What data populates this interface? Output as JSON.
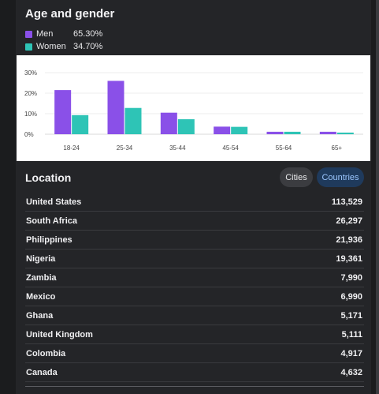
{
  "age_gender": {
    "title": "Age and gender",
    "legend": [
      {
        "name": "Men",
        "percent": "65.30%",
        "color": "#8a50e8"
      },
      {
        "name": "Women",
        "percent": "34.70%",
        "color": "#2ec4b6"
      }
    ]
  },
  "chart_data": {
    "type": "bar",
    "categories": [
      "18-24",
      "25-34",
      "35-44",
      "45-54",
      "55-64",
      "65+"
    ],
    "series": [
      {
        "name": "Men",
        "values": [
          21.5,
          26,
          10.5,
          3.7,
          1.2,
          1.2
        ],
        "color": "#8a50e8"
      },
      {
        "name": "Women",
        "values": [
          9.3,
          12.8,
          7.3,
          3.6,
          1.2,
          0.8
        ],
        "color": "#2ec4b6"
      }
    ],
    "ylim": [
      0,
      30
    ],
    "yticks": [
      "0%",
      "10%",
      "20%",
      "30%"
    ],
    "grid": true
  },
  "location": {
    "title": "Location",
    "tabs": {
      "cities": "Cities",
      "countries": "Countries"
    },
    "rows": [
      {
        "country": "United States",
        "count": "113,529"
      },
      {
        "country": "South Africa",
        "count": "26,297"
      },
      {
        "country": "Philippines",
        "count": "21,936"
      },
      {
        "country": "Nigeria",
        "count": "19,361"
      },
      {
        "country": "Zambia",
        "count": "7,990"
      },
      {
        "country": "Mexico",
        "count": "6,990"
      },
      {
        "country": "Ghana",
        "count": "5,171"
      },
      {
        "country": "United Kingdom",
        "count": "5,111"
      },
      {
        "country": "Colombia",
        "count": "4,917"
      },
      {
        "country": "Canada",
        "count": "4,632"
      }
    ]
  }
}
